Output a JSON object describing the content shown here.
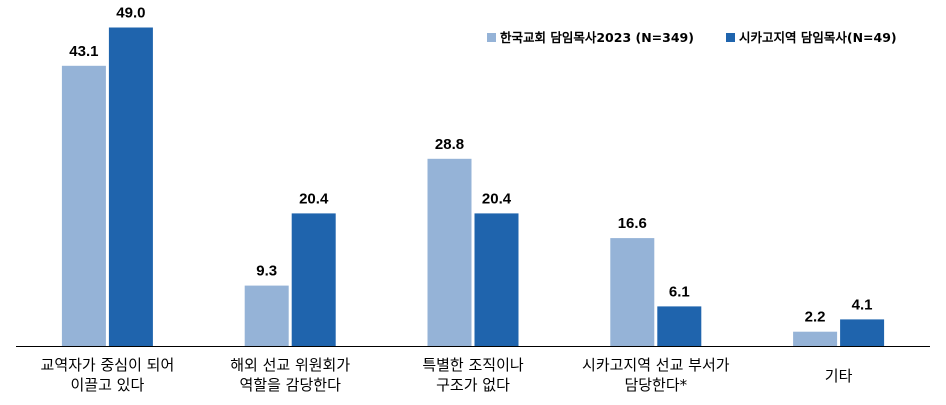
{
  "chart_data": {
    "type": "bar",
    "categories": [
      [
        "교역자가 중심이 되어",
        "이끌고 있다"
      ],
      [
        "해외 선교 위원회가",
        "역할을 감당한다"
      ],
      [
        "특별한 조직이나",
        "구조가 없다"
      ],
      [
        "시카고지역 선교 부서가",
        "담당한다*"
      ],
      [
        "기타"
      ]
    ],
    "series": [
      {
        "name": "한국교회 담임목사2023 (N=349)",
        "color": "#95b3d7",
        "values": [
          43.1,
          9.3,
          28.8,
          16.6,
          2.2
        ]
      },
      {
        "name": "시카고지역 담임목사(N=49)",
        "color": "#1f64ad",
        "values": [
          49.0,
          20.4,
          20.4,
          6.1,
          4.1
        ]
      }
    ],
    "ylim": [
      0,
      50
    ],
    "legend_position": "top-right",
    "grid": false,
    "value_decimals": 1
  }
}
